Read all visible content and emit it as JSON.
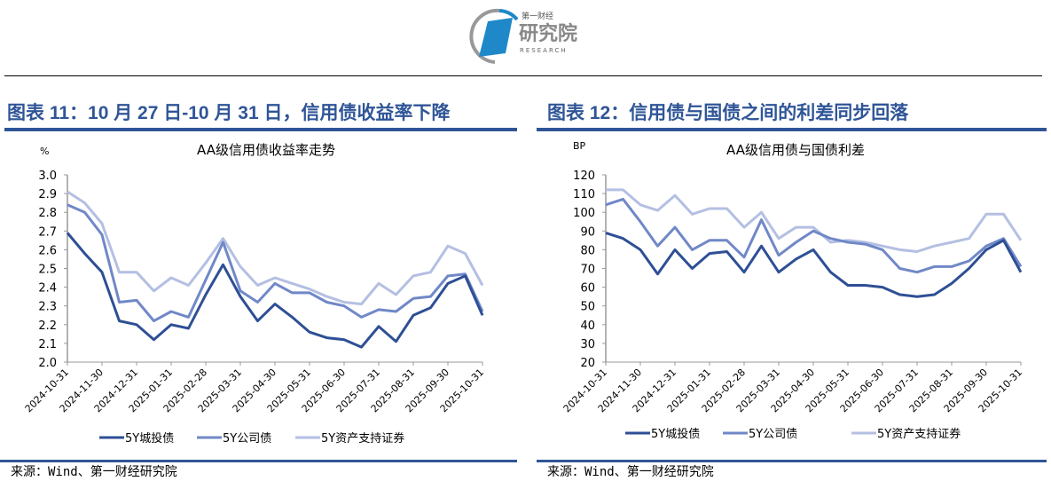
{
  "logo": {
    "line1": "第一财经",
    "line2": "研究院",
    "line3": "RESEARCH"
  },
  "figures": [
    {
      "title": "图表 11：10 月 27 日-10 月 31 日，信用债收益率下降",
      "source": "来源：Wind、第一财经研究院"
    },
    {
      "title": "图表 12：信用债与国债之间的利差同步回落",
      "source": "来源：Wind、第一财经研究院"
    }
  ],
  "colors": {
    "dark": "#2e4f95",
    "mid": "#7088c8",
    "light": "#b4bfe2",
    "accent": "#2f5597"
  },
  "chart_data": [
    {
      "type": "line",
      "title": "AA级信用债收益率走势",
      "ylabel": "%",
      "ylim": [
        2.0,
        3.0
      ],
      "yticks": [
        "2.0",
        "2.1",
        "2.2",
        "2.3",
        "2.4",
        "2.5",
        "2.6",
        "2.7",
        "2.8",
        "2.9",
        "3.0"
      ],
      "xticks": [
        "2024-10-31",
        "2024-11-30",
        "2024-12-31",
        "2025-01-31",
        "2025-02-28",
        "2025-03-31",
        "2025-04-30",
        "2025-05-31",
        "2025-06-30",
        "2025-07-31",
        "2025-08-31",
        "2025-09-30",
        "2025-10-31"
      ],
      "x_months": [
        0,
        0.5,
        1,
        1.5,
        2,
        2.5,
        3,
        3.5,
        4,
        4.5,
        5,
        5.5,
        6,
        6.5,
        7,
        7.5,
        8,
        8.5,
        9,
        9.5,
        10,
        10.5,
        11,
        11.5,
        12
      ],
      "legend": "bottom",
      "series": [
        {
          "name": "5Y城投债",
          "color": "dark",
          "values": [
            2.69,
            2.58,
            2.48,
            2.22,
            2.2,
            2.12,
            2.2,
            2.18,
            2.36,
            2.52,
            2.35,
            2.22,
            2.31,
            2.24,
            2.16,
            2.13,
            2.12,
            2.08,
            2.19,
            2.11,
            2.25,
            2.29,
            2.42,
            2.46,
            2.25
          ]
        },
        {
          "name": "5Y公司债",
          "color": "mid",
          "values": [
            2.84,
            2.8,
            2.68,
            2.32,
            2.33,
            2.22,
            2.27,
            2.24,
            2.44,
            2.64,
            2.38,
            2.32,
            2.42,
            2.37,
            2.37,
            2.32,
            2.3,
            2.24,
            2.28,
            2.27,
            2.34,
            2.35,
            2.46,
            2.47,
            2.27
          ]
        },
        {
          "name": "5Y资产支持证券",
          "color": "light",
          "values": [
            2.91,
            2.85,
            2.74,
            2.48,
            2.48,
            2.38,
            2.45,
            2.41,
            2.53,
            2.66,
            2.51,
            2.41,
            2.45,
            2.42,
            2.39,
            2.35,
            2.32,
            2.31,
            2.42,
            2.36,
            2.46,
            2.48,
            2.62,
            2.58,
            2.41
          ]
        }
      ]
    },
    {
      "type": "line",
      "title": "AA级信用债与国债利差",
      "ylabel": "BP",
      "ylim": [
        20,
        120
      ],
      "yticks": [
        "20",
        "30",
        "40",
        "50",
        "60",
        "70",
        "80",
        "90",
        "100",
        "110",
        "120"
      ],
      "xticks": [
        "2024-10-31",
        "2024-11-30",
        "2024-12-31",
        "2025-01-31",
        "2025-02-28",
        "2025-03-31",
        "2025-04-30",
        "2025-05-31",
        "2025-06-30",
        "2025-07-31",
        "2025-08-31",
        "2025-09-30",
        "2025-10-31"
      ],
      "x_months": [
        0,
        0.5,
        1,
        1.5,
        2,
        2.5,
        3,
        3.5,
        4,
        4.5,
        5,
        5.5,
        6,
        6.5,
        7,
        7.5,
        8,
        8.5,
        9,
        9.5,
        10,
        10.5,
        11,
        11.5,
        12
      ],
      "legend": "bottom",
      "series": [
        {
          "name": "5Y城投债",
          "color": "dark",
          "values": [
            89,
            86,
            80,
            67,
            80,
            70,
            78,
            79,
            68,
            82,
            68,
            75,
            80,
            68,
            61,
            61,
            60,
            56,
            55,
            56,
            62,
            70,
            80,
            85,
            68
          ]
        },
        {
          "name": "5Y公司债",
          "color": "mid",
          "values": [
            104,
            107,
            95,
            82,
            92,
            80,
            85,
            85,
            76,
            96,
            77,
            84,
            90,
            86,
            84,
            83,
            80,
            70,
            68,
            71,
            71,
            74,
            82,
            86,
            71
          ]
        },
        {
          "name": "5Y资产支持证券",
          "color": "light",
          "values": [
            112,
            112,
            104,
            101,
            109,
            99,
            102,
            102,
            92,
            100,
            86,
            92,
            92,
            84,
            85,
            84,
            82,
            80,
            79,
            82,
            84,
            86,
            99,
            99,
            85
          ]
        }
      ]
    }
  ]
}
